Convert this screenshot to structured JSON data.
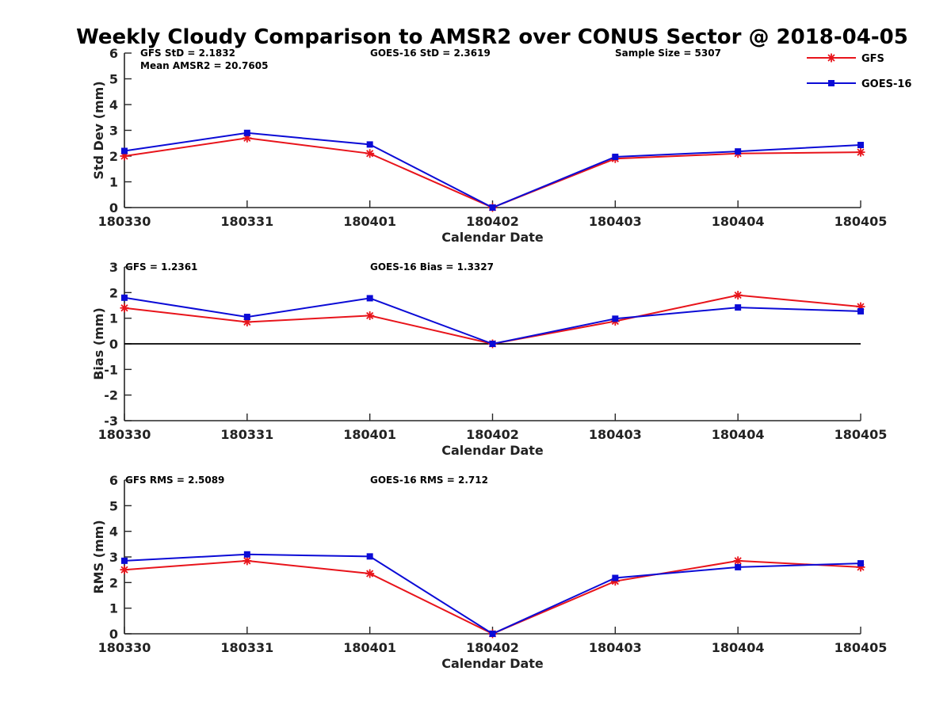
{
  "chart_data": [
    {
      "type": "line",
      "title": "Weekly Cloudy Comparison to AMSR2 over CONUS Sector @ 2018-04-05",
      "xlabel": "Calendar Date",
      "ylabel": "Std Dev (mm)",
      "categories": [
        "180330",
        "180331",
        "180401",
        "180402",
        "180403",
        "180404",
        "180405"
      ],
      "ylim": [
        0,
        6
      ],
      "yticks": [
        0,
        1,
        2,
        3,
        4,
        5,
        6
      ],
      "series": [
        {
          "name": "GFS",
          "color": "#e8141b",
          "marker": "asterisk",
          "values": [
            2.0,
            2.7,
            2.1,
            0.0,
            1.9,
            2.1,
            2.15
          ]
        },
        {
          "name": "GOES-16",
          "color": "#0b0bd6",
          "marker": "square",
          "values": [
            2.2,
            2.9,
            2.45,
            0.0,
            1.97,
            2.18,
            2.43
          ]
        }
      ],
      "annotations": [
        "GFS StD = 2.1832",
        "Mean AMSR2 = 20.7605",
        "GOES-16 StD = 2.3619",
        "Sample Size = 5307"
      ]
    },
    {
      "type": "line",
      "xlabel": "Calendar Date",
      "ylabel": "Bias (mm)",
      "categories": [
        "180330",
        "180331",
        "180401",
        "180402",
        "180403",
        "180404",
        "180405"
      ],
      "ylim": [
        -3,
        3
      ],
      "yticks": [
        -3,
        -2,
        -1,
        0,
        1,
        2,
        3
      ],
      "zero_line": true,
      "series": [
        {
          "name": "GFS",
          "color": "#e8141b",
          "marker": "asterisk",
          "values": [
            1.4,
            0.85,
            1.1,
            0.0,
            0.88,
            1.9,
            1.45
          ]
        },
        {
          "name": "GOES-16",
          "color": "#0b0bd6",
          "marker": "square",
          "values": [
            1.8,
            1.05,
            1.78,
            0.0,
            0.98,
            1.42,
            1.27
          ]
        }
      ],
      "annotations": [
        "GFS = 1.2361",
        "GOES-16 Bias  = 1.3327"
      ]
    },
    {
      "type": "line",
      "xlabel": "Calendar Date",
      "ylabel": "RMS (mm)",
      "categories": [
        "180330",
        "180331",
        "180401",
        "180402",
        "180403",
        "180404",
        "180405"
      ],
      "ylim": [
        0,
        6
      ],
      "yticks": [
        0,
        1,
        2,
        3,
        4,
        5,
        6
      ],
      "series": [
        {
          "name": "GFS",
          "color": "#e8141b",
          "marker": "asterisk",
          "values": [
            2.5,
            2.85,
            2.35,
            0.0,
            2.05,
            2.85,
            2.6
          ]
        },
        {
          "name": "GOES-16",
          "color": "#0b0bd6",
          "marker": "square",
          "values": [
            2.85,
            3.1,
            3.02,
            0.0,
            2.18,
            2.6,
            2.75
          ]
        }
      ],
      "annotations": [
        "GFS RMS = 2.5089",
        "GOES-16 RMS = 2.712"
      ]
    }
  ],
  "legend": {
    "position": "top-right",
    "entries": [
      {
        "label": "GFS",
        "color": "#e8141b",
        "marker": "asterisk"
      },
      {
        "label": "GOES-16",
        "color": "#0b0bd6",
        "marker": "square"
      }
    ]
  }
}
